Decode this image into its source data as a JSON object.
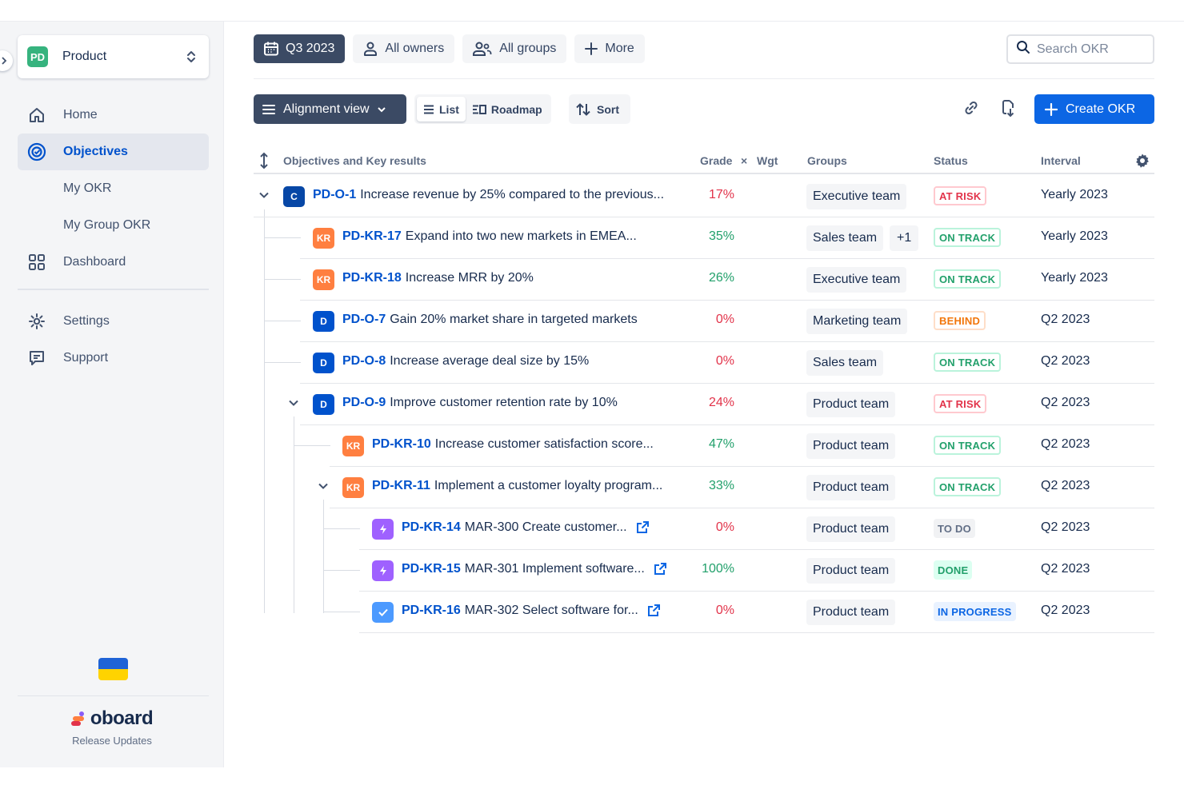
{
  "sidebar": {
    "project": {
      "badge": "PD",
      "name": "Product"
    },
    "nav": [
      {
        "label": "Home",
        "icon": "home-icon"
      },
      {
        "label": "Objectives",
        "icon": "target-icon",
        "active": true
      },
      {
        "label": "My OKR"
      },
      {
        "label": "My Group OKR"
      },
      {
        "label": "Dashboard",
        "icon": "dashboard-icon"
      }
    ],
    "nav2": [
      {
        "label": "Settings",
        "icon": "gear-icon"
      },
      {
        "label": "Support",
        "icon": "chat-icon"
      }
    ],
    "brand": "oboard",
    "release": "Release Updates"
  },
  "filters": {
    "period": "Q3 2023",
    "owners": "All owners",
    "groups": "All groups",
    "more": "More",
    "search_placeholder": "Search OKR"
  },
  "toolbar": {
    "view": "Alignment view",
    "list": "List",
    "roadmap": "Roadmap",
    "sort": "Sort",
    "create": "Create OKR"
  },
  "table": {
    "headers": {
      "title": "Objectives and Key results",
      "grade": "Grade",
      "x": "×",
      "wgt": "Wgt",
      "groups": "Groups",
      "status": "Status",
      "interval": "Interval"
    },
    "rows": [
      {
        "type": "C",
        "id": "PD-O-1",
        "title": "Increase revenue by 25% compared to the previous...",
        "grade": "17%",
        "group": "Executive team",
        "status": "AT RISK",
        "interval": "Yearly 2023"
      },
      {
        "type": "KR",
        "id": "PD-KR-17",
        "title": "Expand into two new markets in EMEA...",
        "grade": "35%",
        "group": "Sales team",
        "group_extra": "+1",
        "status": "ON TRACK",
        "interval": "Yearly 2023"
      },
      {
        "type": "KR",
        "id": "PD-KR-18",
        "title": "Increase MRR by 20%",
        "grade": "26%",
        "group": "Executive team",
        "status": "ON TRACK",
        "interval": "Yearly 2023"
      },
      {
        "type": "D",
        "id": "PD-O-7",
        "title": "Gain 20% market share in targeted markets",
        "grade": "0%",
        "group": "Marketing team",
        "status": "BEHIND",
        "interval": "Q2 2023"
      },
      {
        "type": "D",
        "id": "PD-O-8",
        "title": "Increase average deal size by 15%",
        "grade": "0%",
        "group": "Sales team",
        "status": "ON TRACK",
        "interval": "Q2 2023"
      },
      {
        "type": "D",
        "id": "PD-O-9",
        "title": "Improve customer retention rate by 10%",
        "grade": "24%",
        "group": "Product team",
        "status": "AT RISK",
        "interval": "Q2 2023"
      },
      {
        "type": "KR",
        "id": "PD-KR-10",
        "title": "Increase customer satisfaction score...",
        "grade": "47%",
        "group": "Product team",
        "status": "ON TRACK",
        "interval": "Q2 2023"
      },
      {
        "type": "KR",
        "id": "PD-KR-11",
        "title": "Implement a customer loyalty program...",
        "grade": "33%",
        "group": "Product team",
        "status": "ON TRACK",
        "interval": "Q2 2023"
      },
      {
        "type": "bolt",
        "id": "PD-KR-14",
        "title": "MAR-300 Create customer...",
        "grade": "0%",
        "group": "Product team",
        "status": "TO DO",
        "interval": "Q2 2023"
      },
      {
        "type": "bolt",
        "id": "PD-KR-15",
        "title": "MAR-301 Implement software...",
        "grade": "100%",
        "group": "Product team",
        "status": "DONE",
        "interval": "Q2 2023"
      },
      {
        "type": "check",
        "id": "PD-KR-16",
        "title": "MAR-302 Select software for...",
        "grade": "0%",
        "group": "Product team",
        "status": "IN PROGRESS",
        "interval": "Q2 2023"
      }
    ]
  },
  "colors": {
    "accent": "#0c66e4",
    "brand_green": "#36b37e",
    "kr_orange": "#ff7f40",
    "task_purple": "#9f61ff"
  }
}
